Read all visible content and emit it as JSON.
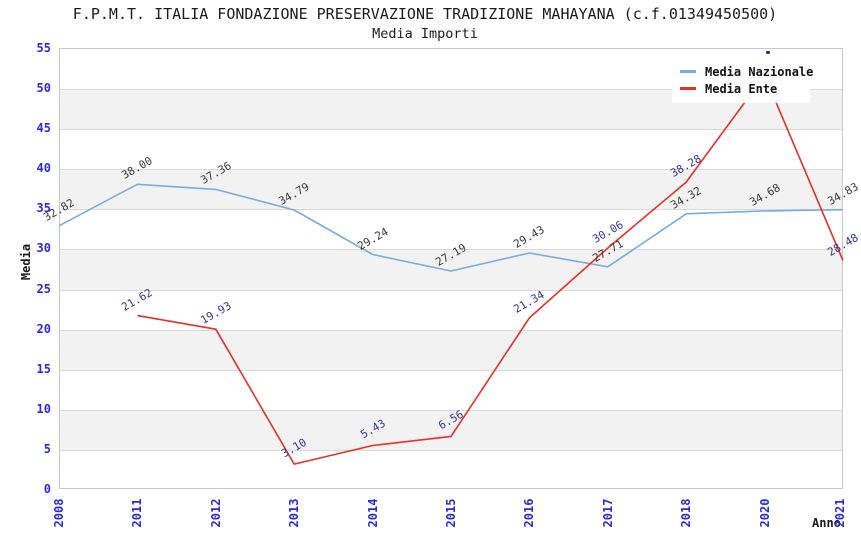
{
  "page": {
    "background": "#ffffff"
  },
  "chart_data": {
    "type": "line",
    "title": "F.P.M.T. ITALIA FONDAZIONE PRESERVAZIONE TRADIZIONE MAHAYANA (c.f.01349450500)",
    "subtitle": "Media Importi",
    "xlabel": "Anno",
    "ylabel": "Media",
    "categories": [
      "2008",
      "2011",
      "2012",
      "2013",
      "2014",
      "2015",
      "2016",
      "2017",
      "2018",
      "2020",
      "2021"
    ],
    "ylim": [
      0,
      55
    ],
    "ytick_step": 5,
    "grid": "horizontal-bands-alternating",
    "band_color": "#f2f2f2",
    "gridline_color": "#dadada",
    "axis_tick_color": "#2a2ae0",
    "legend_position": "top-right",
    "series": [
      {
        "name": "Media Nazionale",
        "color": "#7aacdf",
        "label_color": "#3a3a3a",
        "values": [
          32.82,
          38.0,
          37.36,
          34.79,
          29.24,
          27.19,
          29.43,
          27.71,
          34.32,
          34.68,
          34.83
        ],
        "labels": [
          "32.82",
          "38.00",
          "37.36",
          "34.79",
          "29.24",
          "27.19",
          "29.43",
          "27.71",
          "34.32",
          "34.68",
          "34.83"
        ]
      },
      {
        "name": "Media Ente",
        "color": "#e73128",
        "label_color": "#34349b",
        "values": [
          null,
          21.62,
          19.93,
          3.1,
          5.43,
          6.56,
          21.34,
          30.06,
          38.28,
          51.6,
          28.48
        ],
        "labels": [
          null,
          "21.62",
          "19.93",
          "3.10",
          "5.43",
          "6.56",
          "21.34",
          "30.06",
          "38.28",
          null,
          "28.48"
        ],
        "note": "2020 value ~51.6 estimated from line position; its data label is hidden behind the legend box"
      }
    ]
  }
}
